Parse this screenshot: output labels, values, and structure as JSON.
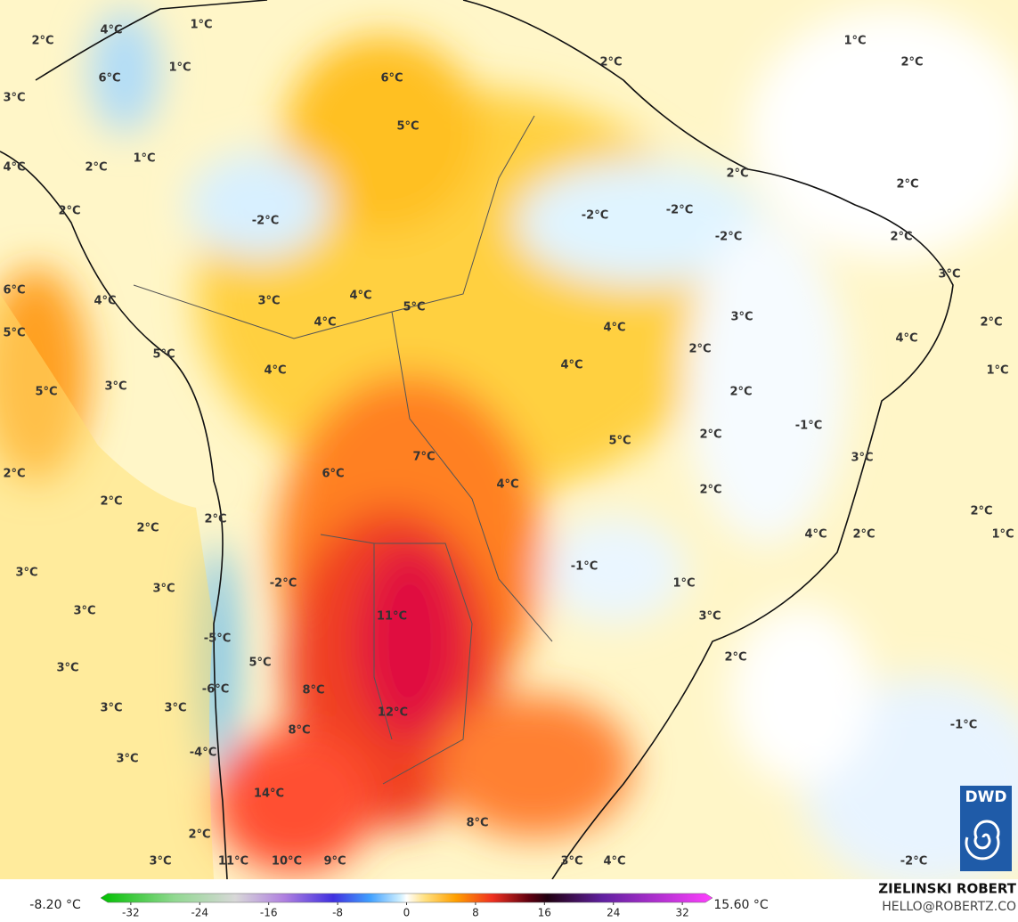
{
  "map": {
    "labels": [
      "1°C",
      "2°C",
      "4°C",
      "1°C",
      "6°C",
      "6°C",
      "2°C",
      "1°C",
      "2°C",
      "3°C",
      "5°C",
      "1°C",
      "2°C",
      "4°C",
      "2°C",
      "2°C",
      "2°C",
      "-2°C",
      "-2°C",
      "-2°C",
      "-2°C",
      "2°C",
      "3°C",
      "6°C",
      "3°C",
      "4°C",
      "5°C",
      "4°C",
      "4°C",
      "4°C",
      "3°C",
      "2°C",
      "4°C",
      "5°C",
      "5°C",
      "2°C",
      "1°C",
      "4°C",
      "4°C",
      "3°C",
      "5°C",
      "2°C",
      "-1°C",
      "5°C",
      "2°C",
      "7°C",
      "3°C",
      "6°C",
      "2°C",
      "4°C",
      "2°C",
      "2°C",
      "2°C",
      "2°C",
      "2°C",
      "4°C",
      "2°C",
      "1°C",
      "3°C",
      "-1°C",
      "-2°C",
      "1°C",
      "3°C",
      "3°C",
      "11°C",
      "3°C",
      "-5°C",
      "5°C",
      "2°C",
      "3°C",
      "-6°C",
      "8°C",
      "12°C",
      "3°C",
      "3°C",
      "-1°C",
      "8°C",
      "-4°C",
      "3°C",
      "14°C",
      "8°C",
      "2°C",
      "3°C",
      "11°C",
      "10°C",
      "9°C",
      "3°C",
      "4°C",
      "-2°C"
    ]
  },
  "colorbar": {
    "min_label": "-8.20 °C",
    "max_label": "15.60 °C",
    "lim": [
      -35.5,
      35.5
    ],
    "ticks": [
      -32,
      -24,
      -16,
      -8,
      0,
      8,
      16,
      24,
      32
    ]
  },
  "credits": {
    "author": "ZIELINSKI ROBERT",
    "contact": "HELLO@ROBERTZ.CO",
    "logo": "DWD"
  }
}
